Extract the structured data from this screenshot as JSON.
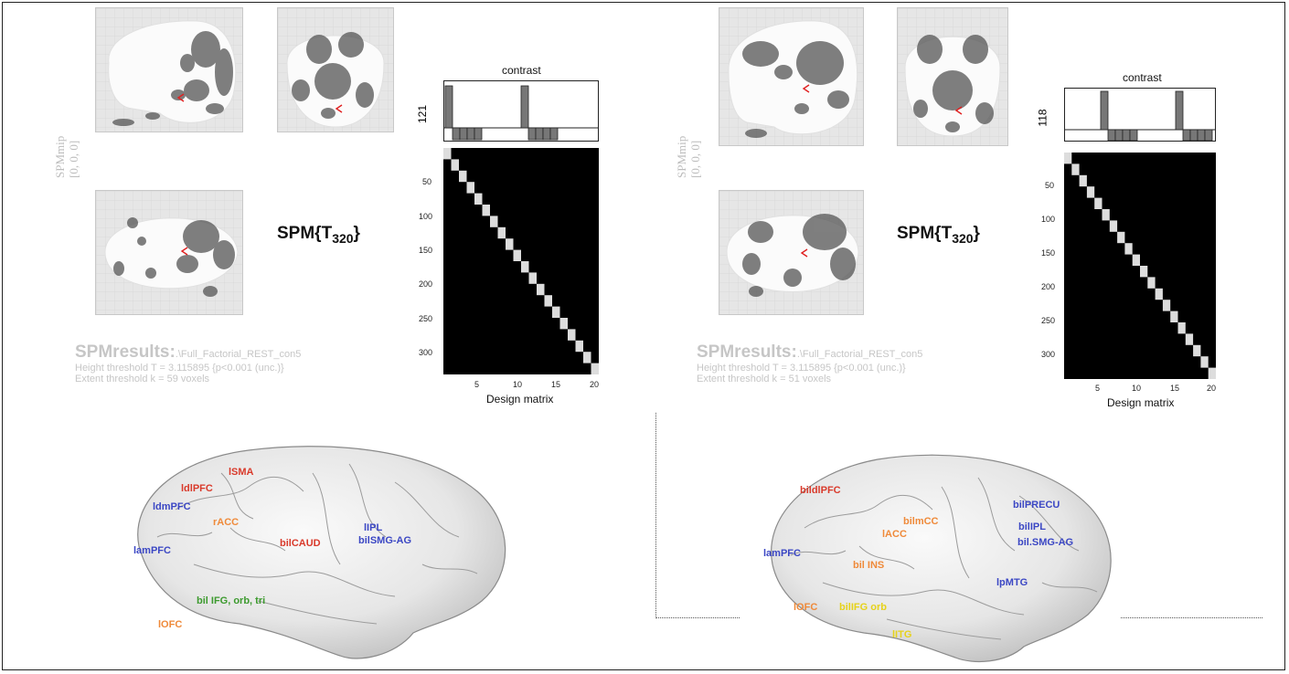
{
  "panels": [
    {
      "spm_mip_label": "SPMmip",
      "spm_mip_coords": "[0, 0, 0]",
      "spm_stat_base": "SPM{T",
      "spm_stat_sub": "320",
      "spm_stat_close": "}",
      "results_title": "SPMresults:",
      "results_path": ".\\Full_Factorial_REST_con5",
      "height_threshold": "Height threshold T = 3.115895  {p<0.001 (unc.)}",
      "extent_threshold": "Extent threshold k = 59 voxels",
      "contrast_title": "contrast",
      "contrast_number": "121",
      "design_label": "Design matrix",
      "y_ticks": [
        "50",
        "100",
        "150",
        "200",
        "250",
        "300"
      ],
      "x_ticks": [
        "5",
        "10",
        "15",
        "20"
      ],
      "regions": [
        {
          "label": "lSMA",
          "color": "red"
        },
        {
          "label": "ldlPFC",
          "color": "red"
        },
        {
          "label": "ldmPFC",
          "color": "blue"
        },
        {
          "label": "rACC",
          "color": "orange"
        },
        {
          "label": "lIPL",
          "color": "blue"
        },
        {
          "label": "bilSMG-AG",
          "color": "blue"
        },
        {
          "label": "bilCAUD",
          "color": "red"
        },
        {
          "label": "lamPFC",
          "color": "blue"
        },
        {
          "label": "bil IFG, orb, tri",
          "color": "green"
        },
        {
          "label": "lOFC",
          "color": "orange"
        }
      ]
    },
    {
      "spm_mip_label": "SPMmip",
      "spm_mip_coords": "[0, 0, 0]",
      "spm_stat_base": "SPM{T",
      "spm_stat_sub": "320",
      "spm_stat_close": "}",
      "results_title": "SPMresults:",
      "results_path": ".\\Full_Factorial_REST_con5",
      "height_threshold": "Height threshold T = 3.115895  {p<0.001 (unc.)}",
      "extent_threshold": "Extent threshold k = 51 voxels",
      "contrast_title": "contrast",
      "contrast_number": "118",
      "design_label": "Design matrix",
      "y_ticks": [
        "50",
        "100",
        "150",
        "200",
        "250",
        "300"
      ],
      "x_ticks": [
        "5",
        "10",
        "15",
        "20"
      ],
      "regions": [
        {
          "label": "bildlPFC",
          "color": "red"
        },
        {
          "label": "bilPRECU",
          "color": "blue"
        },
        {
          "label": "lACC",
          "color": "orange"
        },
        {
          "label": "bilmCC",
          "color": "orange"
        },
        {
          "label": "bilIPL",
          "color": "blue"
        },
        {
          "label": "bil.SMG-AG",
          "color": "blue"
        },
        {
          "label": "lamPFC",
          "color": "blue"
        },
        {
          "label": "bil INS",
          "color": "orange"
        },
        {
          "label": "lpMTG",
          "color": "blue"
        },
        {
          "label": "lOFC",
          "color": "orange"
        },
        {
          "label": "bilIFG orb",
          "color": "yellow"
        },
        {
          "label": "lITG",
          "color": "yellow"
        }
      ]
    }
  ],
  "colors": {
    "red": "#d93a2b",
    "blue": "#3b47c4",
    "orange": "#ef8a3a",
    "green": "#3c9a2e",
    "yellow": "#e6d21a"
  }
}
